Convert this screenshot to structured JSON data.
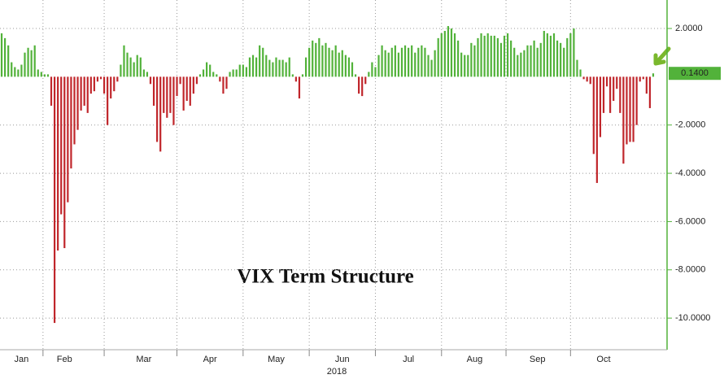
{
  "chart_data": {
    "type": "bar",
    "annotation": "VIX Term Structure",
    "year_label": "2018",
    "last_value_label": "0.1400",
    "positive_color": "#52b23a",
    "negative_color": "#c0262b",
    "grid": true,
    "ylim": [
      -11.31,
      3.18
    ],
    "yticks": [
      {
        "value": 2,
        "label": "2.0000"
      },
      {
        "value": -2,
        "label": "-2.0000"
      },
      {
        "value": -4,
        "label": "-4.0000"
      },
      {
        "value": -6,
        "label": "-6.0000"
      },
      {
        "value": -8,
        "label": "-8.0000"
      },
      {
        "value": -10,
        "label": "-10.0000"
      }
    ],
    "categories": [
      null,
      null,
      null,
      null,
      null,
      null,
      "Jan",
      null,
      null,
      null,
      null,
      null,
      null,
      null,
      null,
      null,
      null,
      null,
      null,
      "Feb",
      null,
      null,
      null,
      null,
      null,
      null,
      null,
      null,
      null,
      null,
      null,
      null,
      null,
      null,
      null,
      null,
      null,
      null,
      null,
      null,
      null,
      null,
      null,
      "Mar",
      null,
      null,
      null,
      null,
      null,
      null,
      null,
      null,
      null,
      null,
      null,
      null,
      null,
      null,
      null,
      null,
      null,
      null,
      null,
      "Apr",
      null,
      null,
      null,
      null,
      null,
      null,
      null,
      null,
      null,
      null,
      null,
      null,
      null,
      null,
      null,
      null,
      null,
      null,
      null,
      "May",
      null,
      null,
      null,
      null,
      null,
      null,
      null,
      null,
      null,
      null,
      null,
      null,
      null,
      null,
      null,
      null,
      null,
      null,
      null,
      "Jun",
      null,
      null,
      null,
      null,
      null,
      null,
      null,
      null,
      null,
      null,
      null,
      null,
      null,
      null,
      null,
      null,
      null,
      null,
      null,
      "Jul",
      null,
      null,
      null,
      null,
      null,
      null,
      null,
      null,
      null,
      null,
      null,
      null,
      null,
      null,
      null,
      null,
      null,
      null,
      null,
      "Aug",
      null,
      null,
      null,
      null,
      null,
      null,
      null,
      null,
      null,
      null,
      null,
      null,
      null,
      null,
      null,
      null,
      null,
      null,
      "Sep",
      null,
      null,
      null,
      null,
      null,
      null,
      null,
      null,
      null,
      null,
      null,
      null,
      null,
      null,
      null,
      null,
      null,
      null,
      null,
      "Oct",
      null,
      null,
      null,
      null,
      null,
      null,
      null,
      null,
      null,
      null,
      null,
      null,
      null,
      null,
      null
    ],
    "values": [
      1.8,
      1.6,
      1.3,
      0.6,
      0.4,
      0.3,
      0.5,
      1.0,
      1.2,
      1.1,
      1.3,
      0.3,
      0.2,
      0.1,
      0.1,
      -1.2,
      -10.2,
      -7.2,
      -5.7,
      -7.1,
      -5.2,
      -3.8,
      -2.8,
      -2.2,
      -1.4,
      -1.2,
      -1.5,
      -0.7,
      -0.6,
      -0.2,
      -0.1,
      -0.7,
      -2.0,
      -0.9,
      -0.6,
      -0.2,
      0.5,
      1.3,
      1.0,
      0.8,
      0.6,
      0.9,
      0.8,
      0.3,
      0.2,
      -0.3,
      -1.2,
      -2.7,
      -3.1,
      -1.5,
      -1.7,
      -1.5,
      -2.0,
      -0.8,
      -0.3,
      -1.4,
      -1.0,
      -1.2,
      -0.7,
      -0.3,
      0.1,
      0.3,
      0.6,
      0.5,
      0.2,
      0.1,
      -0.2,
      -0.7,
      -0.5,
      0.2,
      0.3,
      0.3,
      0.5,
      0.5,
      0.4,
      0.8,
      0.9,
      0.8,
      1.3,
      1.2,
      0.9,
      0.7,
      0.6,
      0.8,
      0.7,
      0.7,
      0.6,
      0.8,
      0.1,
      -0.2,
      -0.9,
      0.1,
      0.8,
      1.2,
      1.5,
      1.4,
      1.6,
      1.3,
      1.4,
      1.2,
      1.1,
      1.3,
      1.0,
      1.1,
      0.9,
      0.8,
      0.6,
      0.1,
      -0.7,
      -0.8,
      -0.3,
      0.2,
      0.6,
      0.4,
      0.9,
      1.3,
      1.1,
      1.0,
      1.2,
      1.3,
      1.0,
      1.2,
      1.3,
      1.2,
      1.3,
      1.0,
      1.2,
      1.3,
      1.2,
      0.9,
      0.7,
      1.1,
      1.6,
      1.8,
      1.9,
      2.1,
      2.0,
      1.8,
      1.5,
      1.0,
      0.9,
      0.9,
      1.4,
      1.3,
      1.6,
      1.8,
      1.7,
      1.8,
      1.7,
      1.7,
      1.6,
      1.4,
      1.7,
      1.8,
      1.5,
      1.2,
      0.9,
      1.0,
      1.1,
      1.3,
      1.3,
      1.5,
      1.2,
      1.4,
      1.9,
      1.8,
      1.7,
      1.8,
      1.5,
      1.4,
      1.2,
      1.6,
      1.8,
      2.0,
      0.7,
      0.3,
      -0.1,
      -0.2,
      -0.3,
      -3.2,
      -4.4,
      -2.5,
      -1.5,
      -0.4,
      -1.5,
      -1.0,
      -0.5,
      -1.5,
      -3.6,
      -2.8,
      -2.7,
      -2.7,
      -2.0,
      -0.2,
      -0.1,
      -0.7,
      -1.3,
      0.14
    ]
  }
}
